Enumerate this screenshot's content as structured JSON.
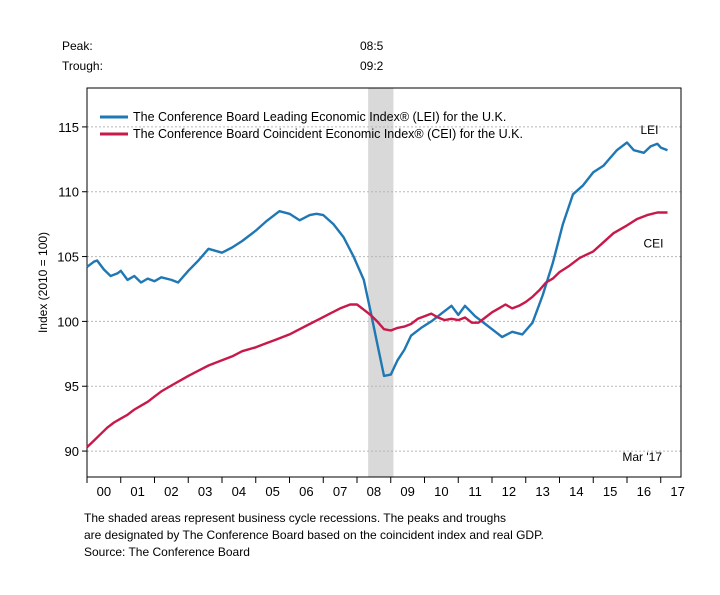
{
  "header": {
    "peak_label": "Peak:",
    "peak_value": "08:5",
    "trough_label": "Trough:",
    "trough_value": "09:2"
  },
  "footnote": {
    "line1": "The shaded areas represent business cycle recessions. The peaks and troughs",
    "line2": "are designated by The Conference Board based on the coincident index and real GDP.",
    "source": "Source: The Conference Board"
  },
  "chart_data": {
    "type": "line",
    "ylabel": "Index (2010 = 100)",
    "ylim": [
      88,
      118
    ],
    "xlim": [
      2000,
      2017.6
    ],
    "yticks": [
      90,
      95,
      100,
      105,
      110,
      115
    ],
    "xtick_labels": [
      "00",
      "01",
      "02",
      "03",
      "04",
      "05",
      "06",
      "07",
      "08",
      "09",
      "10",
      "11",
      "12",
      "13",
      "14",
      "15",
      "16",
      "17"
    ],
    "grid": true,
    "legend_position": "top-left",
    "date_annotation": "Mar '17",
    "recession": {
      "start": 2008.33,
      "end": 2009.08,
      "color": "#d9d9d9"
    },
    "series": [
      {
        "name": "The Conference Board Leading Economic Index® (LEI) for the U.K.",
        "short_label": "LEI",
        "color": "#1f77b4",
        "x": [
          2000.0,
          2000.2,
          2000.3,
          2000.5,
          2000.7,
          2000.9,
          2001.0,
          2001.2,
          2001.4,
          2001.6,
          2001.8,
          2002.0,
          2002.2,
          2002.5,
          2002.7,
          2003.0,
          2003.3,
          2003.6,
          2004.0,
          2004.3,
          2004.6,
          2005.0,
          2005.3,
          2005.7,
          2006.0,
          2006.3,
          2006.6,
          2006.8,
          2007.0,
          2007.3,
          2007.6,
          2007.9,
          2008.2,
          2008.4,
          2008.6,
          2008.8,
          2009.0,
          2009.2,
          2009.4,
          2009.6,
          2009.9,
          2010.2,
          2010.5,
          2010.8,
          2011.0,
          2011.2,
          2011.5,
          2011.8,
          2012.1,
          2012.3,
          2012.6,
          2012.9,
          2013.2,
          2013.5,
          2013.8,
          2014.1,
          2014.4,
          2014.7,
          2015.0,
          2015.3,
          2015.5,
          2015.7,
          2016.0,
          2016.2,
          2016.5,
          2016.7,
          2016.9,
          2017.0,
          2017.2
        ],
        "values": [
          104.2,
          104.6,
          104.7,
          104.0,
          103.5,
          103.7,
          103.9,
          103.2,
          103.5,
          103.0,
          103.3,
          103.1,
          103.4,
          103.2,
          103.0,
          103.9,
          104.7,
          105.6,
          105.3,
          105.7,
          106.2,
          107.0,
          107.7,
          108.5,
          108.3,
          107.8,
          108.2,
          108.3,
          108.2,
          107.5,
          106.5,
          105.0,
          103.2,
          100.8,
          98.3,
          95.8,
          95.9,
          97.0,
          97.8,
          98.9,
          99.5,
          100.0,
          100.6,
          101.2,
          100.5,
          101.2,
          100.4,
          99.8,
          99.2,
          98.8,
          99.2,
          99.0,
          99.9,
          102.0,
          104.5,
          107.5,
          109.8,
          110.5,
          111.5,
          112.0,
          112.6,
          113.2,
          113.8,
          113.2,
          113.0,
          113.5,
          113.7,
          113.4,
          113.2
        ]
      },
      {
        "name": "The Conference Board Coincident Economic Index® (CEI) for the U.K.",
        "short_label": "CEI",
        "color": "#c8194b",
        "x": [
          2000.0,
          2000.2,
          2000.4,
          2000.6,
          2000.8,
          2001.0,
          2001.2,
          2001.4,
          2001.6,
          2001.8,
          2002.0,
          2002.2,
          2002.4,
          2002.6,
          2002.8,
          2003.0,
          2003.3,
          2003.6,
          2004.0,
          2004.3,
          2004.6,
          2005.0,
          2005.3,
          2005.6,
          2006.0,
          2006.3,
          2006.6,
          2006.9,
          2007.2,
          2007.5,
          2007.8,
          2008.0,
          2008.2,
          2008.4,
          2008.6,
          2008.8,
          2009.0,
          2009.2,
          2009.4,
          2009.6,
          2009.8,
          2010.0,
          2010.2,
          2010.4,
          2010.6,
          2010.8,
          2011.0,
          2011.2,
          2011.4,
          2011.6,
          2011.8,
          2012.0,
          2012.2,
          2012.4,
          2012.6,
          2012.8,
          2013.0,
          2013.2,
          2013.4,
          2013.6,
          2013.8,
          2014.0,
          2014.3,
          2014.6,
          2015.0,
          2015.3,
          2015.6,
          2016.0,
          2016.3,
          2016.6,
          2016.9,
          2017.2
        ],
        "values": [
          90.3,
          90.8,
          91.3,
          91.8,
          92.2,
          92.5,
          92.8,
          93.2,
          93.5,
          93.8,
          94.2,
          94.6,
          94.9,
          95.2,
          95.5,
          95.8,
          96.2,
          96.6,
          97.0,
          97.3,
          97.7,
          98.0,
          98.3,
          98.6,
          99.0,
          99.4,
          99.8,
          100.2,
          100.6,
          101.0,
          101.3,
          101.3,
          100.9,
          100.5,
          100.0,
          99.4,
          99.3,
          99.5,
          99.6,
          99.8,
          100.2,
          100.4,
          100.6,
          100.3,
          100.1,
          100.2,
          100.1,
          100.3,
          99.9,
          99.9,
          100.3,
          100.7,
          101.0,
          101.3,
          101.0,
          101.2,
          101.5,
          101.9,
          102.4,
          103.0,
          103.3,
          103.8,
          104.3,
          104.9,
          105.4,
          106.1,
          106.8,
          107.4,
          107.9,
          108.2,
          108.4,
          108.4
        ]
      }
    ]
  }
}
